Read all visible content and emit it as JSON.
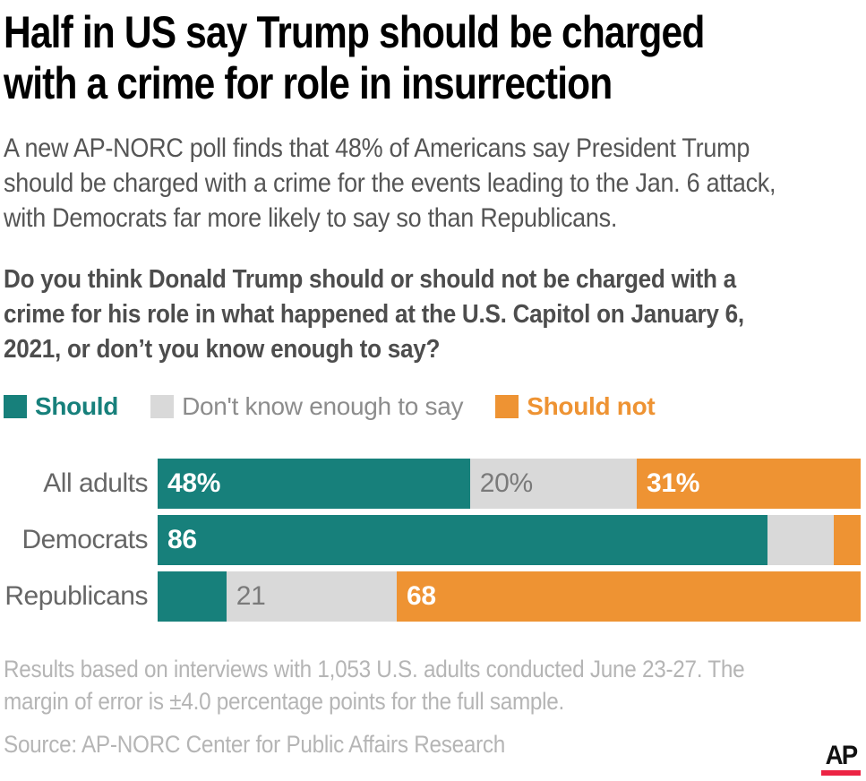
{
  "header": {
    "title": "Half in US say Trump should be charged\nwith a crime for role in insurrection",
    "subtitle": "A new AP-NORC poll finds that 48% of Americans say President Trump\nshould be charged with a crime for the events leading to the Jan. 6 attack,\nwith Democrats far more likely to say so than Republicans.",
    "question": "Do you think Donald Trump should or should not be charged with a\ncrime for his role in what happened at the U.S. Capitol on January 6,\n2021, or don’t you know enough to say?"
  },
  "legend": {
    "items": [
      {
        "label": "Should",
        "swatch_color": "#17807b",
        "text_color": "#17807b",
        "bold": true
      },
      {
        "label": "Don't know enough to say",
        "swatch_color": "#d9d9d9",
        "text_color": "#8c8c8c",
        "bold": false
      },
      {
        "label": "Should not",
        "swatch_color": "#ee9333",
        "text_color": "#ee9333",
        "bold": true
      }
    ]
  },
  "chart_data": {
    "type": "bar",
    "stacked": true,
    "orientation": "horizontal",
    "grid": false,
    "legend_position": "top",
    "xlim": [
      0,
      100
    ],
    "categories": [
      "All adults",
      "Democrats",
      "Republicans"
    ],
    "series": [
      {
        "name": "Should",
        "color": "#17807b",
        "values": [
          48,
          86,
          11
        ],
        "label_color": "#ffffff",
        "label_bold": true
      },
      {
        "name": "Don't know enough to say",
        "color": "#d9d9d9",
        "values": [
          20,
          10,
          21
        ],
        "label_color": "#7a7a7a",
        "label_bold": false
      },
      {
        "name": "Should not",
        "color": "#ee9333",
        "values": [
          31,
          4,
          68
        ],
        "label_color": "#ffffff",
        "label_bold": true
      }
    ],
    "bar_labels": [
      [
        "48%",
        "20%",
        "31%"
      ],
      [
        "86",
        "",
        ""
      ],
      [
        "",
        "21",
        "68"
      ]
    ]
  },
  "footer": {
    "note": "Results based on interviews with 1,053 U.S. adults conducted June 23-27. The\nmargin of error is ±4.0 percentage points for the full sample.",
    "source": "Source: AP-NORC Center for Public Affairs Research",
    "logo_text": "AP",
    "logo_red": "#ec2444"
  }
}
